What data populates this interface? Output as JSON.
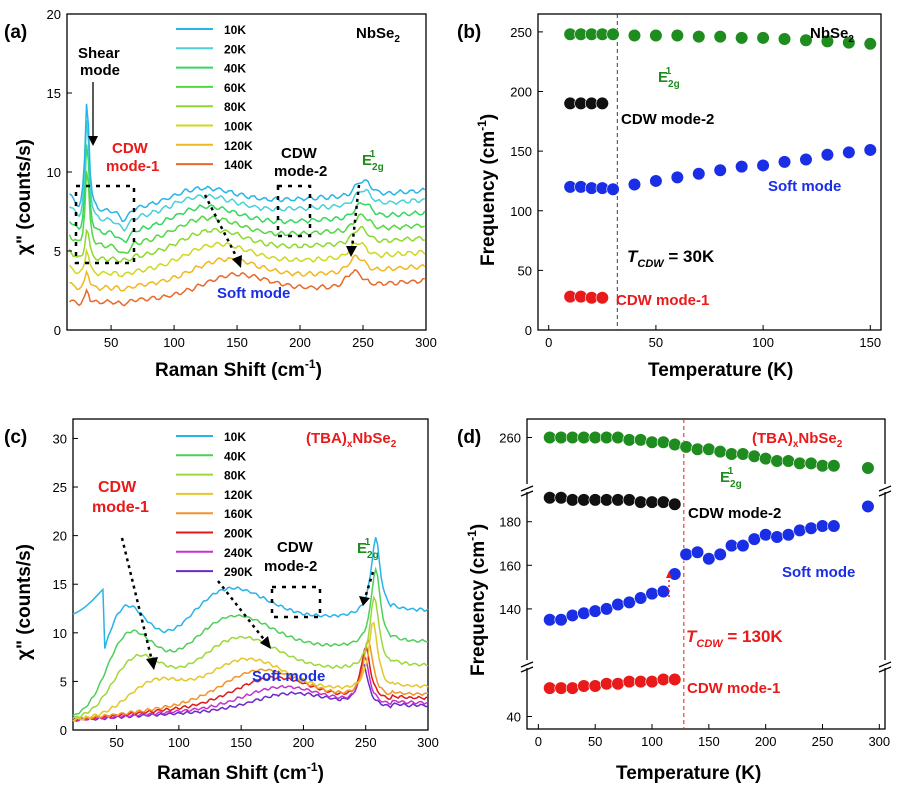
{
  "chart_data": [
    {
      "panel": "(a)",
      "type": "line",
      "material": "NbSe2",
      "xlabel": "Raman Shift (cm-1)",
      "ylabel": "χ\" (counts/s)",
      "xlim": [
        15,
        300
      ],
      "ylim": [
        0,
        20
      ],
      "xticks": [
        50,
        100,
        150,
        200,
        250,
        300
      ],
      "yticks": [
        0,
        5,
        10,
        15,
        20
      ],
      "legend": {
        "position": "top-center",
        "entries": [
          "10K",
          "20K",
          "40K",
          "60K",
          "80K",
          "100K",
          "120K",
          "140K"
        ]
      },
      "series": [
        {
          "name": "10K",
          "color": "#27b4e8",
          "offset": 7.3,
          "soft_pos": 122,
          "soft_amp": 1.1,
          "e2g": 250
        },
        {
          "name": "20K",
          "color": "#4ad0d8",
          "offset": 6.7,
          "soft_pos": 122,
          "soft_amp": 1.2,
          "e2g": 250
        },
        {
          "name": "40K",
          "color": "#33d75f",
          "offset": 5.9,
          "soft_pos": 124,
          "soft_amp": 1.3,
          "e2g": 250
        },
        {
          "name": "60K",
          "color": "#52d840",
          "offset": 5.1,
          "soft_pos": 126,
          "soft_amp": 1.4,
          "e2g": 249
        },
        {
          "name": "80K",
          "color": "#8ed92c",
          "offset": 4.3,
          "soft_pos": 130,
          "soft_amp": 1.4,
          "e2g": 248
        },
        {
          "name": "100K",
          "color": "#cfd820",
          "offset": 3.4,
          "soft_pos": 134,
          "soft_amp": 1.4,
          "e2g": 246
        },
        {
          "name": "120K",
          "color": "#f0b81c",
          "offset": 2.5,
          "soft_pos": 140,
          "soft_amp": 1.3,
          "e2g": 245
        },
        {
          "name": "140K",
          "color": "#e8692a",
          "offset": 1.6,
          "soft_pos": 148,
          "soft_amp": 1.2,
          "e2g": 243
        }
      ],
      "annotations": [
        "Shear mode",
        "CDW mode-1",
        "CDW mode-2",
        "E2g1",
        "Soft mode"
      ]
    },
    {
      "panel": "(b)",
      "type": "scatter",
      "material": "NbSe2",
      "xlabel": "Temperature (K)",
      "ylabel": "Frequency (cm-1)",
      "xlim": [
        -5,
        155
      ],
      "ylim": [
        0,
        265
      ],
      "xticks": [
        0,
        50,
        100,
        150
      ],
      "yticks": [
        0,
        50,
        100,
        150,
        200,
        250
      ],
      "tcdw_line": 32,
      "tcdw_label": "T_CDW = 30K",
      "series": [
        {
          "name": "E2g1",
          "color": "#1e8c1e",
          "x": [
            10,
            15,
            20,
            25,
            30,
            40,
            50,
            60,
            70,
            80,
            90,
            100,
            110,
            120,
            130,
            140,
            150
          ],
          "y": [
            248,
            248,
            248,
            248,
            248,
            247,
            247,
            247,
            246,
            246,
            245,
            245,
            244,
            243,
            242,
            241,
            240
          ]
        },
        {
          "name": "CDW mode-2",
          "color": "#111111",
          "x": [
            10,
            15,
            20,
            25
          ],
          "y": [
            190,
            190,
            190,
            190
          ]
        },
        {
          "name": "Soft mode",
          "color": "#1a2ee6",
          "x": [
            10,
            15,
            20,
            25,
            30,
            40,
            50,
            60,
            70,
            80,
            90,
            100,
            110,
            120,
            130,
            140,
            150
          ],
          "y": [
            120,
            120,
            119,
            119,
            118,
            122,
            125,
            128,
            131,
            134,
            137,
            138,
            141,
            143,
            147,
            149,
            151
          ]
        },
        {
          "name": "CDW mode-1",
          "color": "#e81a1a",
          "x": [
            10,
            15,
            20,
            25
          ],
          "y": [
            28,
            28,
            27,
            27
          ]
        }
      ]
    },
    {
      "panel": "(c)",
      "type": "line",
      "material": "(TBA)xNbSe2",
      "xlabel": "Raman Shift (cm-1)",
      "ylabel": "χ\" (counts/s)",
      "xlim": [
        15,
        300
      ],
      "ylim": [
        0,
        32
      ],
      "xticks": [
        50,
        100,
        150,
        200,
        250,
        300
      ],
      "yticks": [
        0,
        5,
        10,
        15,
        20,
        25,
        30
      ],
      "legend": {
        "position": "top-center",
        "entries": [
          "10K",
          "40K",
          "80K",
          "120K",
          "160K",
          "200K",
          "240K",
          "290K"
        ]
      },
      "series": [
        {
          "name": "10K",
          "color": "#27b4e8",
          "m1": 53,
          "m1amp": 8.5,
          "m2": 132,
          "m2amp": 4.2,
          "base": 11.3,
          "e2g": 258,
          "e2gamp": 8
        },
        {
          "name": "40K",
          "color": "#4fcf5a",
          "m1": 58,
          "m1amp": 6.5,
          "m2": 138,
          "m2amp": 4.0,
          "base": 8.0,
          "e2g": 258,
          "e2gamp": 8
        },
        {
          "name": "80K",
          "color": "#9cd83a",
          "m1": 65,
          "m1amp": 4.5,
          "m2": 145,
          "m2amp": 3.8,
          "base": 5.5,
          "e2g": 257,
          "e2gamp": 7.5
        },
        {
          "name": "120K",
          "color": "#e3c72b",
          "m1": 80,
          "m1amp": 2.5,
          "m2": 152,
          "m2amp": 3.5,
          "base": 3.2,
          "e2g": 256,
          "e2gamp": 7
        },
        {
          "name": "160K",
          "color": "#f09428",
          "m1": 0,
          "m1amp": 0,
          "m2": 165,
          "m2amp": 3.0,
          "base": 2.4,
          "e2g": 252,
          "e2gamp": 6
        },
        {
          "name": "200K",
          "color": "#e11818",
          "m1": 0,
          "m1amp": 0,
          "m2": 175,
          "m2amp": 2.5,
          "base": 2.0,
          "e2g": 250,
          "e2gamp": 5.5
        },
        {
          "name": "240K",
          "color": "#c531cf",
          "m1": 0,
          "m1amp": 0,
          "m2": 182,
          "m2amp": 2.0,
          "base": 1.5,
          "e2g": 249,
          "e2gamp": 5
        },
        {
          "name": "290K",
          "color": "#6b29c9",
          "m1": 0,
          "m1amp": 0,
          "m2": 190,
          "m2amp": 1.6,
          "base": 1.2,
          "e2g": 248,
          "e2gamp": 4.5
        }
      ],
      "annotations": [
        "CDW mode-1",
        "CDW mode-2",
        "E2g1",
        "Soft mode"
      ]
    },
    {
      "panel": "(d)",
      "type": "scatter",
      "material": "(TBA)xNbSe2",
      "xlabel": "Temperature (K)",
      "ylabel": "Frequency (cm-1)",
      "xlim": [
        -10,
        305
      ],
      "xticks": [
        0,
        50,
        100,
        150,
        200,
        250,
        300
      ],
      "yticks": [
        40,
        140,
        160,
        180,
        260
      ],
      "tcdw_line": 128,
      "tcdw_label": "T_CDW = 130K",
      "series": [
        {
          "name": "E2g1",
          "color": "#1e8c1e",
          "x": [
            10,
            20,
            30,
            40,
            50,
            60,
            70,
            80,
            90,
            100,
            110,
            120,
            130,
            140,
            150,
            160,
            170,
            180,
            190,
            200,
            210,
            220,
            230,
            240,
            250,
            260,
            290
          ],
          "y": [
            260,
            260,
            260,
            260,
            260,
            260,
            260,
            259,
            259,
            258,
            258,
            257,
            256,
            255,
            255,
            254,
            253,
            253,
            252,
            251,
            250,
            250,
            249,
            249,
            248,
            248,
            247
          ]
        },
        {
          "name": "CDW mode-2",
          "color": "#111111",
          "x": [
            10,
            20,
            30,
            40,
            50,
            60,
            70,
            80,
            90,
            100,
            110,
            120
          ],
          "y": [
            191,
            191,
            190,
            190,
            190,
            190,
            190,
            190,
            189,
            189,
            189,
            188
          ]
        },
        {
          "name": "Soft mode",
          "color": "#1a2ee6",
          "x": [
            10,
            20,
            30,
            40,
            50,
            60,
            70,
            80,
            90,
            100,
            110,
            120,
            130,
            140,
            150,
            160,
            170,
            180,
            190,
            200,
            210,
            220,
            230,
            240,
            250,
            260,
            290
          ],
          "y": [
            135,
            135,
            137,
            138,
            139,
            140,
            142,
            143,
            145,
            147,
            148,
            156,
            165,
            166,
            163,
            165,
            169,
            169,
            172,
            174,
            173,
            174,
            176,
            177,
            178,
            178,
            187
          ]
        },
        {
          "name": "CDW mode-1",
          "color": "#e81a1a",
          "x": [
            10,
            20,
            30,
            40,
            50,
            60,
            70,
            80,
            90,
            100,
            110,
            120
          ],
          "y": [
            53,
            53,
            53,
            54,
            54,
            55,
            55,
            56,
            56,
            56,
            57,
            57
          ]
        }
      ]
    }
  ],
  "panels": {
    "a": {
      "label": "(a)",
      "material_main": "NbSe",
      "material_sub": "2",
      "legend": [
        "10K",
        "20K",
        "40K",
        "60K",
        "80K",
        "100K",
        "120K",
        "140K"
      ],
      "shear_1": "Shear",
      "shear_2": "mode",
      "cdw1_1": "CDW",
      "cdw1_2": "mode-1",
      "cdw2_1": "CDW",
      "cdw2_2": "mode-2",
      "e2g": "E",
      "e2g_sub": "2g",
      "e2g_sup": "1",
      "soft": "Soft mode",
      "xlabel_main": "Raman Shift (cm",
      "xlabel_sup": "-1",
      "xlabel_end": ")",
      "ylabel": "χ\" (counts/s)",
      "xticks": [
        "50",
        "100",
        "150",
        "200",
        "250",
        "300"
      ],
      "yticks": [
        "0",
        "5",
        "10",
        "15",
        "20"
      ]
    },
    "b": {
      "label": "(b)",
      "material_main": "NbSe",
      "material_sub": "2",
      "e2g": "E",
      "e2g_sub": "2g",
      "e2g_sup": "1",
      "cdw2": "CDW mode-2",
      "soft": "Soft mode",
      "cdw1": "CDW mode-1",
      "tcdw_t": "T",
      "tcdw_sub": "CDW",
      "tcdw_val": " = 30K",
      "xlabel": "Temperature (K)",
      "ylabel_main": "Frequency (cm",
      "ylabel_sup": "-1",
      "ylabel_end": ")",
      "xticks": [
        "0",
        "50",
        "100",
        "150"
      ],
      "yticks": [
        "0",
        "50",
        "100",
        "150",
        "200",
        "250"
      ]
    },
    "c": {
      "label": "(c)",
      "material_main": "(TBA)",
      "material_x": "x",
      "material_rest": "NbSe",
      "material_sub": "2",
      "legend": [
        "10K",
        "40K",
        "80K",
        "120K",
        "160K",
        "200K",
        "240K",
        "290K"
      ],
      "cdw1_1": "CDW",
      "cdw1_2": "mode-1",
      "cdw2_1": "CDW",
      "cdw2_2": "mode-2",
      "e2g": "E",
      "e2g_sub": "2g",
      "e2g_sup": "1",
      "soft": "Soft mode",
      "xlabel_main": "Raman Shift (cm",
      "xlabel_sup": "-1",
      "xlabel_end": ")",
      "ylabel": "χ\" (counts/s)",
      "xticks": [
        "50",
        "100",
        "150",
        "200",
        "250",
        "300"
      ],
      "yticks": [
        "0",
        "5",
        "10",
        "15",
        "20",
        "25",
        "30"
      ]
    },
    "d": {
      "label": "(d)",
      "material_main": "(TBA)",
      "material_x": "x",
      "material_rest": "NbSe",
      "material_sub": "2",
      "e2g": "E",
      "e2g_sub": "2g",
      "e2g_sup": "1",
      "cdw2": "CDW mode-2",
      "soft": "Soft mode",
      "cdw1": "CDW mode-1",
      "tcdw_t": "T",
      "tcdw_sub": "CDW",
      "tcdw_val": " = 130K",
      "xlabel": "Temperature (K)",
      "ylabel_main": "Frequency (cm",
      "ylabel_sup": "-1",
      "ylabel_end": ")",
      "xticks": [
        "0",
        "50",
        "100",
        "150",
        "200",
        "250",
        "300"
      ],
      "yticks": [
        "40",
        "140",
        "160",
        "180",
        "260"
      ]
    }
  },
  "colors": {
    "green": "#1e8c1e",
    "red": "#e81a1a",
    "blue": "#1a2ee6",
    "black": "#111111"
  }
}
